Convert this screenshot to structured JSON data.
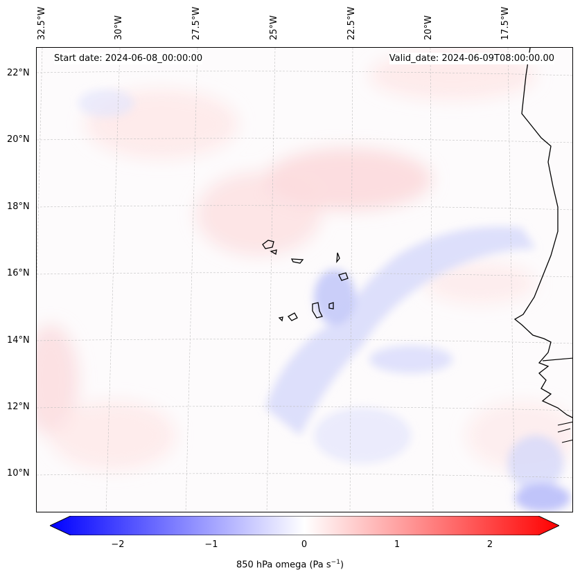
{
  "map": {
    "start_date": "Start date: 2024-06-08_00:00:00",
    "valid_date": "Valid_date: 2024-06-09T08:00:00.00",
    "lon_labels": [
      "32.5°W",
      "30°W",
      "27.5°W",
      "25°W",
      "22.5°W",
      "20°W",
      "17.5°W"
    ],
    "lat_labels": [
      "22°N",
      "20°N",
      "18°N",
      "16°N",
      "14°N",
      "12°N",
      "10°N"
    ],
    "colorbar": {
      "ticks": [
        "−2",
        "−1",
        "0",
        "1",
        "2"
      ],
      "label": "850 hPa omega (Pa s",
      "label_sup": "−1",
      "label_close": ")",
      "min": -2.6,
      "max": 2.6,
      "colors": {
        "negative": "#0000ff",
        "zero": "#ffffff",
        "positive": "#ff0000"
      }
    }
  }
}
